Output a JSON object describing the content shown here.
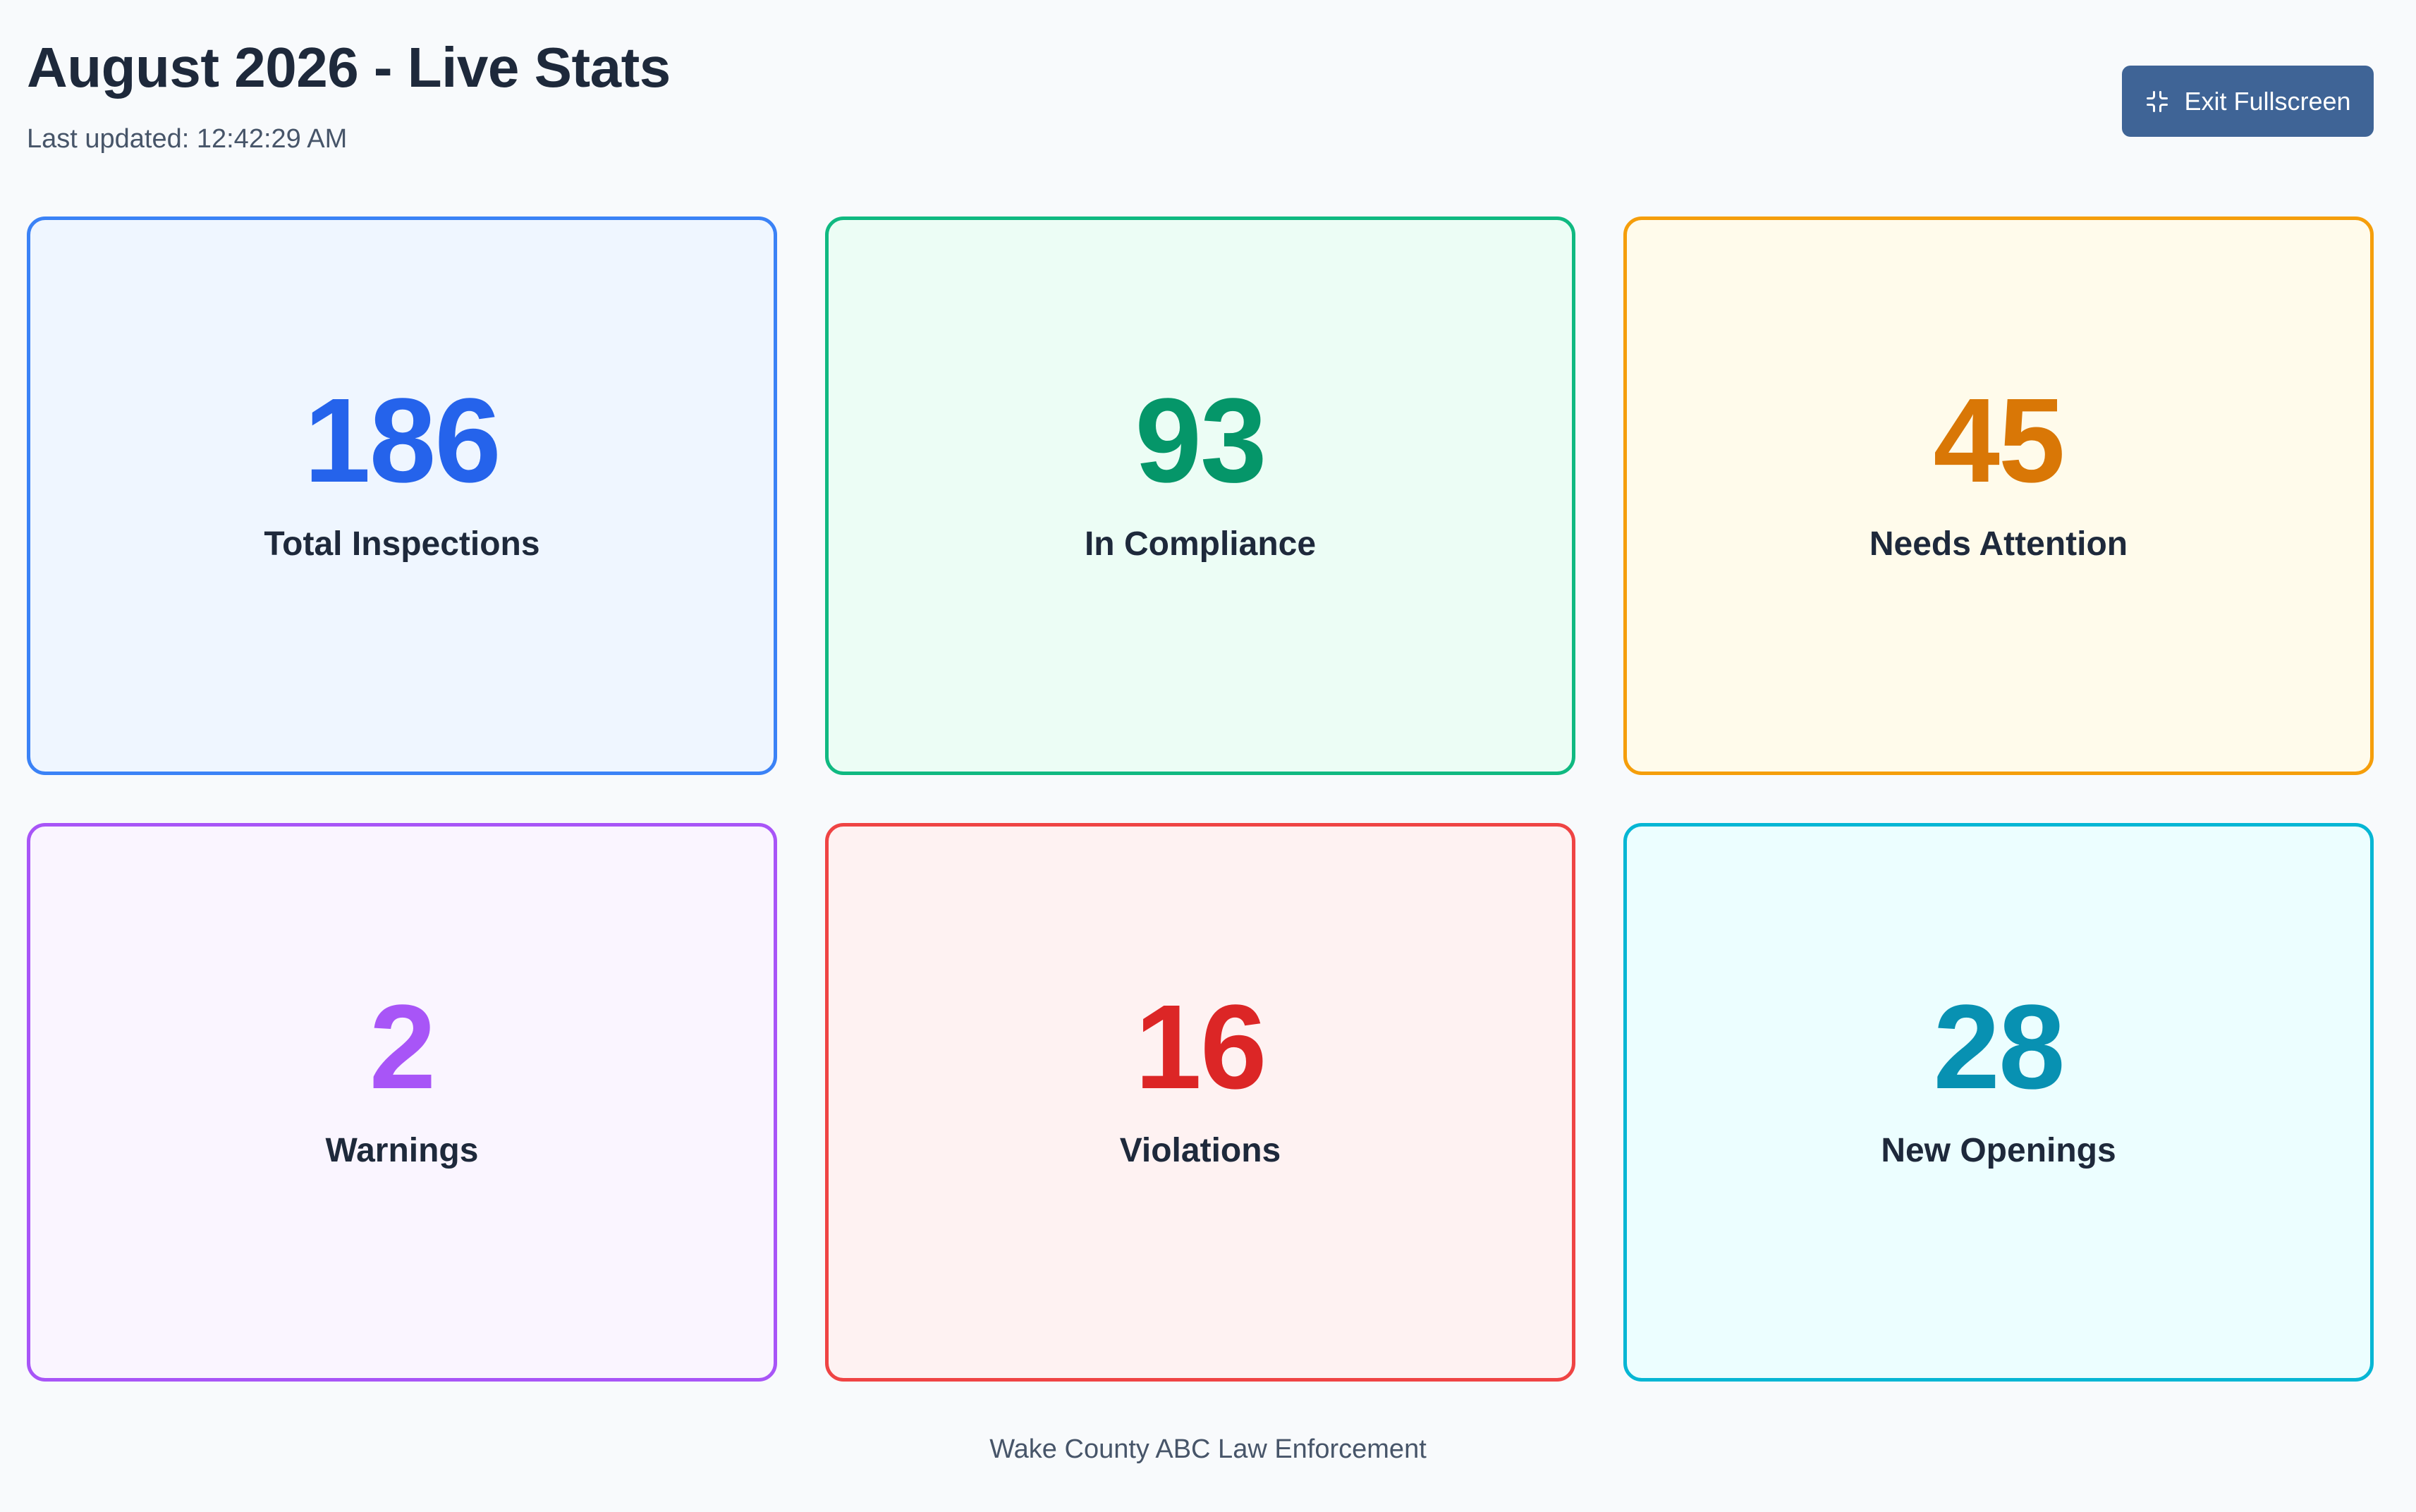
{
  "header": {
    "title": "August 2026 - Live Stats",
    "last_updated": "Last updated: 12:42:29 AM"
  },
  "toolbar": {
    "exit_fullscreen_label": "Exit Fullscreen",
    "exit_fullscreen_icon": "minimize-icon"
  },
  "stats": [
    {
      "value": "186",
      "label": "Total Inspections",
      "accent": "#2563eb",
      "border": "#3b82f6",
      "background": "#eff6ff"
    },
    {
      "value": "93",
      "label": "In Compliance",
      "accent": "#059669",
      "border": "#10b981",
      "background": "#ecfdf5"
    },
    {
      "value": "45",
      "label": "Needs Attention",
      "accent": "#d97706",
      "border": "#f59e0b",
      "background": "#fffbeb"
    },
    {
      "value": "2",
      "label": "Warnings",
      "accent": "#a855f7",
      "border": "#a855f7",
      "background": "#faf5ff"
    },
    {
      "value": "16",
      "label": "Violations",
      "accent": "#dc2626",
      "border": "#ef4444",
      "background": "#fef2f2"
    },
    {
      "value": "28",
      "label": "New Openings",
      "accent": "#0891b2",
      "border": "#06b6d4",
      "background": "#ecfeff"
    }
  ],
  "footer": {
    "text": "Wake County ABC Law Enforcement"
  },
  "colors": {
    "page_background": "#f8fafc",
    "button_background": "#3f6496",
    "heading_text": "#1e293b",
    "muted_text": "#475569"
  }
}
